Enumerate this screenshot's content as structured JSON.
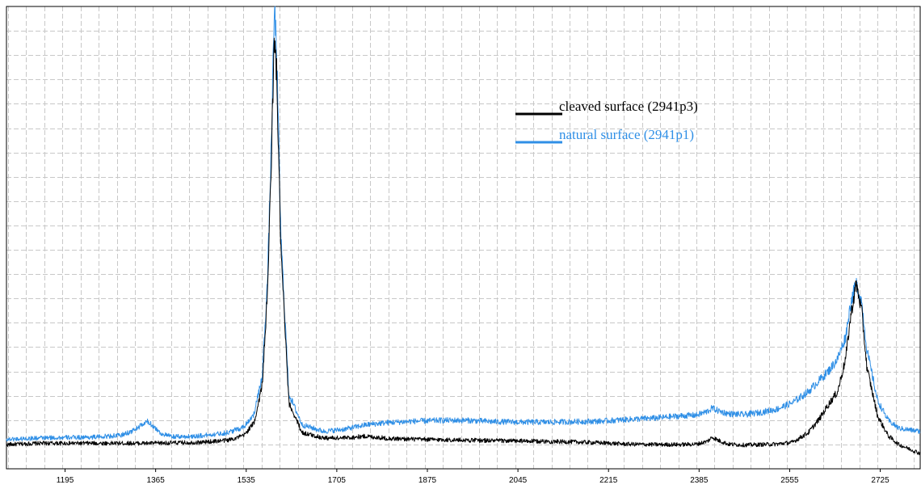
{
  "chart_data": {
    "type": "line",
    "title": "",
    "xlabel": "",
    "ylabel": "",
    "xlim": [
      1085,
      2800
    ],
    "ylim": [
      -5,
      100
    ],
    "xticks": [
      1195,
      1365,
      1535,
      1705,
      1875,
      2045,
      2215,
      2385,
      2555,
      2725
    ],
    "xtick_labels": [
      "1195",
      "1365",
      "1535",
      "1705",
      "1875",
      "2045",
      "2215",
      "2385",
      "2555",
      "2725"
    ],
    "grid": true,
    "legend_position": "top-right",
    "series": [
      {
        "name": "cleaved surface (2941p3)",
        "color": "#000000",
        "x": [
          1085,
          1150,
          1250,
          1300,
          1350,
          1400,
          1450,
          1500,
          1530,
          1550,
          1565,
          1575,
          1582,
          1588,
          1592,
          1600,
          1615,
          1640,
          1680,
          1720,
          1760,
          1800,
          1850,
          1900,
          1950,
          2000,
          2050,
          2100,
          2150,
          2200,
          2250,
          2300,
          2350,
          2380,
          2400,
          2410,
          2420,
          2440,
          2470,
          2500,
          2530,
          2560,
          2590,
          2610,
          2630,
          2645,
          2660,
          2670,
          2680,
          2690,
          2700,
          2720,
          2740,
          2760,
          2800
        ],
        "y": [
          0.5,
          0.8,
          0.8,
          0.8,
          0.8,
          0.9,
          1.0,
          1.5,
          2.5,
          5.5,
          14,
          35,
          65,
          93,
          85,
          45,
          10,
          3.2,
          2.0,
          2.0,
          2.4,
          1.9,
          1.7,
          1.6,
          1.5,
          1.4,
          1.3,
          1.2,
          1.1,
          0.9,
          0.6,
          0.5,
          0.5,
          0.6,
          1.2,
          2.2,
          1.5,
          0.6,
          0.4,
          0.5,
          0.6,
          1.0,
          3.2,
          6.2,
          10.0,
          12.5,
          20,
          30,
          37,
          31,
          18,
          7.0,
          2.5,
          0.5,
          -1.5
        ]
      },
      {
        "name": "natural surface (2941p1)",
        "color": "#2f8fe6",
        "x": [
          1085,
          1150,
          1250,
          1300,
          1320,
          1340,
          1350,
          1360,
          1375,
          1395,
          1420,
          1450,
          1500,
          1530,
          1550,
          1565,
          1575,
          1582,
          1588,
          1592,
          1600,
          1615,
          1640,
          1680,
          1720,
          1760,
          1800,
          1850,
          1900,
          1950,
          2000,
          2050,
          2100,
          2150,
          2200,
          2250,
          2300,
          2350,
          2380,
          2400,
          2410,
          2420,
          2440,
          2470,
          2500,
          2530,
          2560,
          2590,
          2610,
          2630,
          2645,
          2660,
          2670,
          2680,
          2690,
          2700,
          2720,
          2740,
          2760,
          2800
        ],
        "y": [
          1.7,
          2.0,
          2.2,
          2.6,
          3.5,
          5.0,
          5.7,
          4.8,
          3.0,
          2.3,
          2.3,
          2.5,
          3.2,
          4.5,
          7.5,
          16,
          38,
          68,
          100,
          90,
          48,
          12,
          5.0,
          3.5,
          4.0,
          5.0,
          5.5,
          5.8,
          6.0,
          6.0,
          5.7,
          5.6,
          5.6,
          5.7,
          5.8,
          6.2,
          6.5,
          7.0,
          7.2,
          8.0,
          8.8,
          8.2,
          7.5,
          7.3,
          7.8,
          8.5,
          10.0,
          12.5,
          15.0,
          17.5,
          20.0,
          25,
          33,
          37,
          33,
          22,
          10.5,
          6.0,
          4.2,
          3.5
        ]
      }
    ]
  }
}
